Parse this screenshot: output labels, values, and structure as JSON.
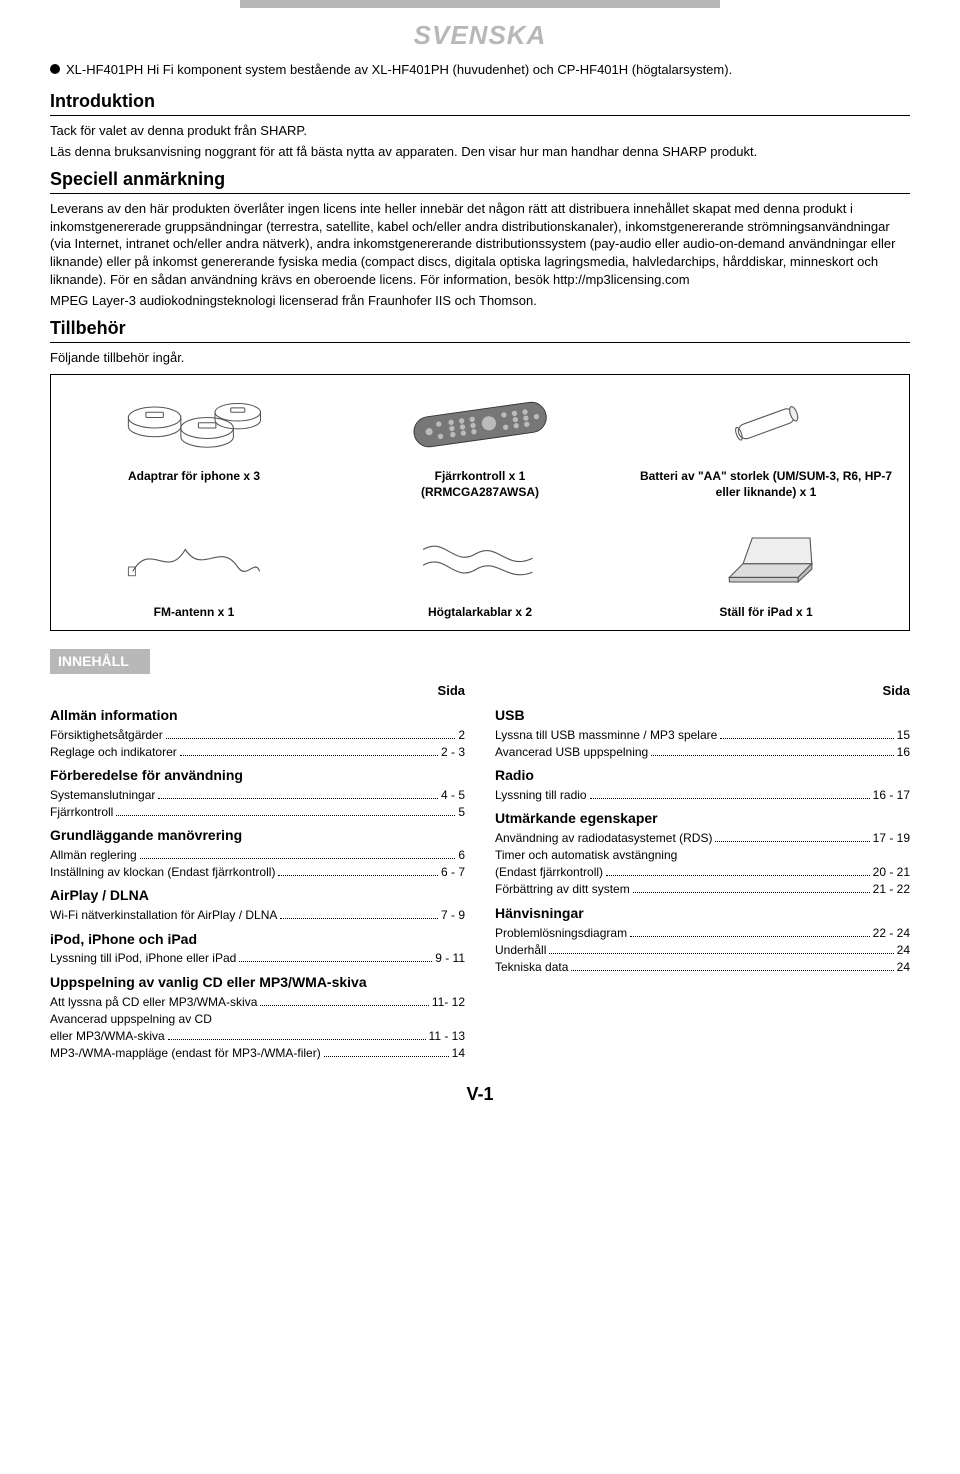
{
  "header": {
    "svenska": "SVENSKA",
    "bullet_text": "XL-HF401PH Hi Fi komponent system bestående av XL-HF401PH (huvudenhet) och CP-HF401H (högtalarsystem)."
  },
  "introduktion": {
    "title": "Introduktion",
    "p1": "Tack för valet av denna produkt från SHARP.",
    "p2": "Läs denna bruksanvisning noggrant för att få bästa nytta av apparaten. Den visar hur man handhar denna SHARP produkt."
  },
  "speciell": {
    "title": "Speciell anmärkning",
    "body": "Leverans av den här produkten överlåter ingen licens inte heller innebär det någon rätt att distribuera innehållet skapat med denna produkt i inkomstgenererade gruppsändningar (terrestra, satellite, kabel och/eller andra distributionskanaler), inkomstgenererande strömningsanvändningar (via Internet, intranet och/eller andra nätverk), andra inkomstgenererande distributionssystem (pay-audio eller audio-on-demand användningar eller liknande) eller på inkomst genererande fysiska media (compact discs, digitala optiska lagringsmedia, halvledarchips, hårddiskar, minneskort och liknande). För en sådan användning krävs en oberoende licens. För information, besök http://mp3licensing.com",
    "body2": "MPEG Layer-3 audiokodningsteknologi licenserad från Fraunhofer IIS och Thomson."
  },
  "tillbehor": {
    "title": "Tillbehör",
    "sub": "Följande tillbehör ingår.",
    "items": [
      {
        "label": "Adaptrar för iphone x 3"
      },
      {
        "label": "Fjärrkontroll x 1\n(RRMCGA287AWSA)"
      },
      {
        "label": "Batteri av \"AA\" storlek (UM/SUM-3, R6, HP-7 eller liknande) x 1"
      },
      {
        "label": "FM-antenn x 1"
      },
      {
        "label": "Högtalarkablar x 2"
      },
      {
        "label": "Ställ för iPad x 1"
      }
    ]
  },
  "toc": {
    "header": "INNEHÅLL",
    "sida": "Sida",
    "left": [
      {
        "section": "Allmän information",
        "entries": [
          {
            "label": "Försiktighetsåtgärder",
            "page": "2"
          },
          {
            "label": "Reglage och indikatorer",
            "page": "2 - 3"
          }
        ]
      },
      {
        "section": "Förberedelse för användning",
        "entries": [
          {
            "label": "Systemanslutningar",
            "page": "4 - 5"
          },
          {
            "label": "Fjärrkontroll",
            "page": "5"
          }
        ]
      },
      {
        "section": "Grundläggande manövrering",
        "entries": [
          {
            "label": "Allmän reglering",
            "page": "6"
          },
          {
            "label": "Inställning av klockan (Endast fjärrkontroll)",
            "page": "6 - 7"
          }
        ]
      },
      {
        "section": "AirPlay / DLNA",
        "entries": [
          {
            "label": "Wi-Fi nätverkinstallation för AirPlay / DLNA",
            "page": "7 - 9"
          }
        ]
      },
      {
        "section": "iPod, iPhone och iPad",
        "entries": [
          {
            "label": "Lyssning till iPod, iPhone eller iPad",
            "page": "9 - 11"
          }
        ]
      },
      {
        "section": "Uppspelning av vanlig CD eller MP3/WMA-skiva",
        "entries": [
          {
            "label": "Att lyssna på CD eller MP3/WMA-skiva",
            "page": "11- 12"
          },
          {
            "label": "Avancerad uppspelning av CD",
            "page": ""
          },
          {
            "label": "eller MP3/WMA-skiva",
            "page": "11 - 13"
          },
          {
            "label": "MP3-/WMA-mappläge (endast för MP3-/WMA-filer)",
            "page": "14"
          }
        ]
      }
    ],
    "right": [
      {
        "section": "USB",
        "entries": [
          {
            "label": "Lyssna till USB massminne / MP3 spelare",
            "page": "15"
          },
          {
            "label": "Avancerad USB uppspelning",
            "page": "16"
          }
        ]
      },
      {
        "section": "Radio",
        "entries": [
          {
            "label": "Lyssning till radio",
            "page": "16 - 17"
          }
        ]
      },
      {
        "section": "Utmärkande egenskaper",
        "entries": [
          {
            "label": "Användning av radiodatasystemet (RDS)",
            "page": "17 - 19"
          },
          {
            "label": "Timer och automatisk avstängning",
            "page": ""
          },
          {
            "label": "(Endast fjärrkontroll)",
            "page": "20 - 21"
          },
          {
            "label": "Förbättring av ditt system",
            "page": "21 - 22"
          }
        ]
      },
      {
        "section": "Hänvisningar",
        "entries": [
          {
            "label": "Problemlösningsdiagram",
            "page": "22 - 24"
          },
          {
            "label": "Underhåll",
            "page": "24"
          },
          {
            "label": "Tekniska data",
            "page": "24"
          }
        ]
      }
    ]
  },
  "page_number": "V-1"
}
